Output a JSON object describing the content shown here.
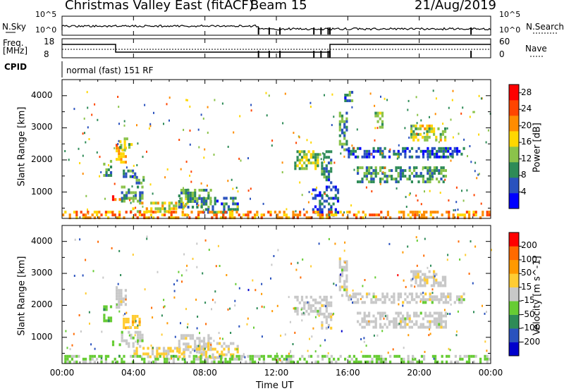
{
  "header": {
    "station": "Christmas Valley East (fitACF)",
    "beam": "Beam 15",
    "date": "21/Aug/2019"
  },
  "strip": {
    "nsky_label": "N.Sky",
    "nsearch_label": "N.Search",
    "freq_label_1": "Freq.",
    "freq_label_2": "[MHz]",
    "nave_label": "Nave",
    "cpid_label": "CPID",
    "cpid_text": "normal (fast) 151 RF",
    "noise_left_ticks": [
      "10^5",
      "10^0"
    ],
    "noise_right_ticks": [
      "10^5",
      "10^0"
    ],
    "freq_left_ticks": [
      "18",
      "8"
    ],
    "freq_right_ticks": [
      "60",
      "0"
    ]
  },
  "axes": {
    "xlabel": "Time UT",
    "ylabel": "Slant Range [km]",
    "xticks": [
      "00:00",
      "04:00",
      "08:00",
      "12:00",
      "16:00",
      "20:00",
      "00:00"
    ],
    "yticks": [
      "1000",
      "2000",
      "3000",
      "4000"
    ]
  },
  "colors": {
    "power_scale": [
      "#0000ff",
      "#2a52be",
      "#2e8b57",
      "#8bc34a",
      "#ffd700",
      "#ff8c00",
      "#ff4500",
      "#ff0000"
    ],
    "velocity_scale": [
      "#ff0000",
      "#ff6a00",
      "#ff9900",
      "#ffcc33",
      "#c8c8c8",
      "#66cc33",
      "#2e8b57",
      "#2a52be",
      "#0000cc"
    ]
  },
  "chart_data": [
    {
      "type": "heatmap",
      "title": "Power",
      "x_units": "hours UT",
      "xlim": [
        0,
        24
      ],
      "ylim": [
        180,
        4500
      ],
      "colorbar_label": "Power [dB]",
      "colorbar_ticks": [
        "4",
        "8",
        "12",
        "16",
        "20",
        "24",
        "28"
      ],
      "colorbar_range": [
        0,
        30
      ],
      "regions": [
        {
          "t0": 2.3,
          "t1": 2.7,
          "r0": 1550,
          "r1": 2000,
          "value": 10
        },
        {
          "t0": 3.0,
          "t1": 3.6,
          "r0": 1900,
          "r1": 2500,
          "value": 18
        },
        {
          "t0": 3.2,
          "t1": 3.9,
          "r0": 2300,
          "r1": 2700,
          "value": 14
        },
        {
          "t0": 3.4,
          "t1": 4.1,
          "r0": 1500,
          "r1": 1700,
          "value": 8
        },
        {
          "t0": 4.0,
          "t1": 4.6,
          "r0": 1300,
          "r1": 1500,
          "value": 10
        },
        {
          "t0": 3.3,
          "t1": 4.5,
          "r0": 700,
          "r1": 1200,
          "value": 10
        },
        {
          "t0": 2.8,
          "t1": 3.3,
          "r0": 750,
          "r1": 900,
          "value": 26
        },
        {
          "t0": 3.8,
          "t1": 7.0,
          "r0": 350,
          "r1": 700,
          "value": 16
        },
        {
          "t0": 6.5,
          "t1": 8.3,
          "r0": 500,
          "r1": 1100,
          "value": 10
        },
        {
          "t0": 7.5,
          "t1": 9.8,
          "r0": 400,
          "r1": 850,
          "value": 8
        },
        {
          "t0": 13.0,
          "t1": 14.5,
          "r0": 1700,
          "r1": 2300,
          "value": 14
        },
        {
          "t0": 14.5,
          "t1": 15.1,
          "r0": 1300,
          "r1": 2300,
          "value": 8
        },
        {
          "t0": 14.0,
          "t1": 15.4,
          "r0": 300,
          "r1": 1200,
          "value": 6
        },
        {
          "t0": 15.5,
          "t1": 16.0,
          "r0": 2300,
          "r1": 3500,
          "value": 10
        },
        {
          "t0": 16.0,
          "t1": 22.5,
          "r0": 2100,
          "r1": 2400,
          "value": 6
        },
        {
          "t0": 16.5,
          "t1": 21.5,
          "r0": 1300,
          "r1": 1800,
          "value": 10
        },
        {
          "t0": 17.5,
          "t1": 18.0,
          "r0": 3000,
          "r1": 3500,
          "value": 12
        },
        {
          "t0": 19.5,
          "t1": 21.5,
          "r0": 2600,
          "r1": 3100,
          "value": 14
        },
        {
          "t0": 15.8,
          "t1": 16.3,
          "r0": 3800,
          "r1": 4150,
          "value": 8
        },
        {
          "t0": 0.0,
          "t1": 24.0,
          "r0": 190,
          "r1": 420,
          "value": 20
        }
      ]
    },
    {
      "type": "heatmap",
      "title": "Velocity",
      "x_units": "hours UT",
      "xlim": [
        0,
        24
      ],
      "ylim": [
        180,
        4500
      ],
      "colorbar_label": "Velocity [m s^-1]",
      "colorbar_ticks": [
        "200",
        "100",
        "50",
        "15",
        "-15",
        "-50",
        "-100",
        "-200"
      ],
      "colorbar_range": [
        -250,
        250
      ],
      "regions": [
        {
          "t0": 2.3,
          "t1": 2.7,
          "r0": 1550,
          "r1": 2000,
          "value": -60
        },
        {
          "t0": 3.0,
          "t1": 3.6,
          "r0": 1900,
          "r1": 2600,
          "value": 0
        },
        {
          "t0": 3.4,
          "t1": 4.3,
          "r0": 1300,
          "r1": 1700,
          "value": 60
        },
        {
          "t0": 2.8,
          "t1": 3.3,
          "r0": 750,
          "r1": 900,
          "value": -60
        },
        {
          "t0": 3.3,
          "t1": 4.5,
          "r0": 700,
          "r1": 1200,
          "value": 0
        },
        {
          "t0": 4.0,
          "t1": 7.0,
          "r0": 350,
          "r1": 700,
          "value": 40
        },
        {
          "t0": 6.5,
          "t1": 8.3,
          "r0": 500,
          "r1": 1100,
          "value": 5
        },
        {
          "t0": 7.5,
          "t1": 9.8,
          "r0": 350,
          "r1": 850,
          "value": 30
        },
        {
          "t0": 13.0,
          "t1": 14.5,
          "r0": 1700,
          "r1": 2300,
          "value": 0
        },
        {
          "t0": 14.5,
          "t1": 15.1,
          "r0": 1300,
          "r1": 2300,
          "value": 5
        },
        {
          "t0": 15.5,
          "t1": 16.0,
          "r0": 2300,
          "r1": 3500,
          "value": 0
        },
        {
          "t0": 16.0,
          "t1": 22.5,
          "r0": 2100,
          "r1": 2400,
          "value": 0
        },
        {
          "t0": 16.5,
          "t1": 21.5,
          "r0": 1300,
          "r1": 1800,
          "value": 0
        },
        {
          "t0": 19.5,
          "t1": 21.5,
          "r0": 2600,
          "r1": 3100,
          "value": 5
        },
        {
          "t0": 0.0,
          "t1": 24.0,
          "r0": 190,
          "r1": 450,
          "value": -40
        }
      ]
    }
  ]
}
